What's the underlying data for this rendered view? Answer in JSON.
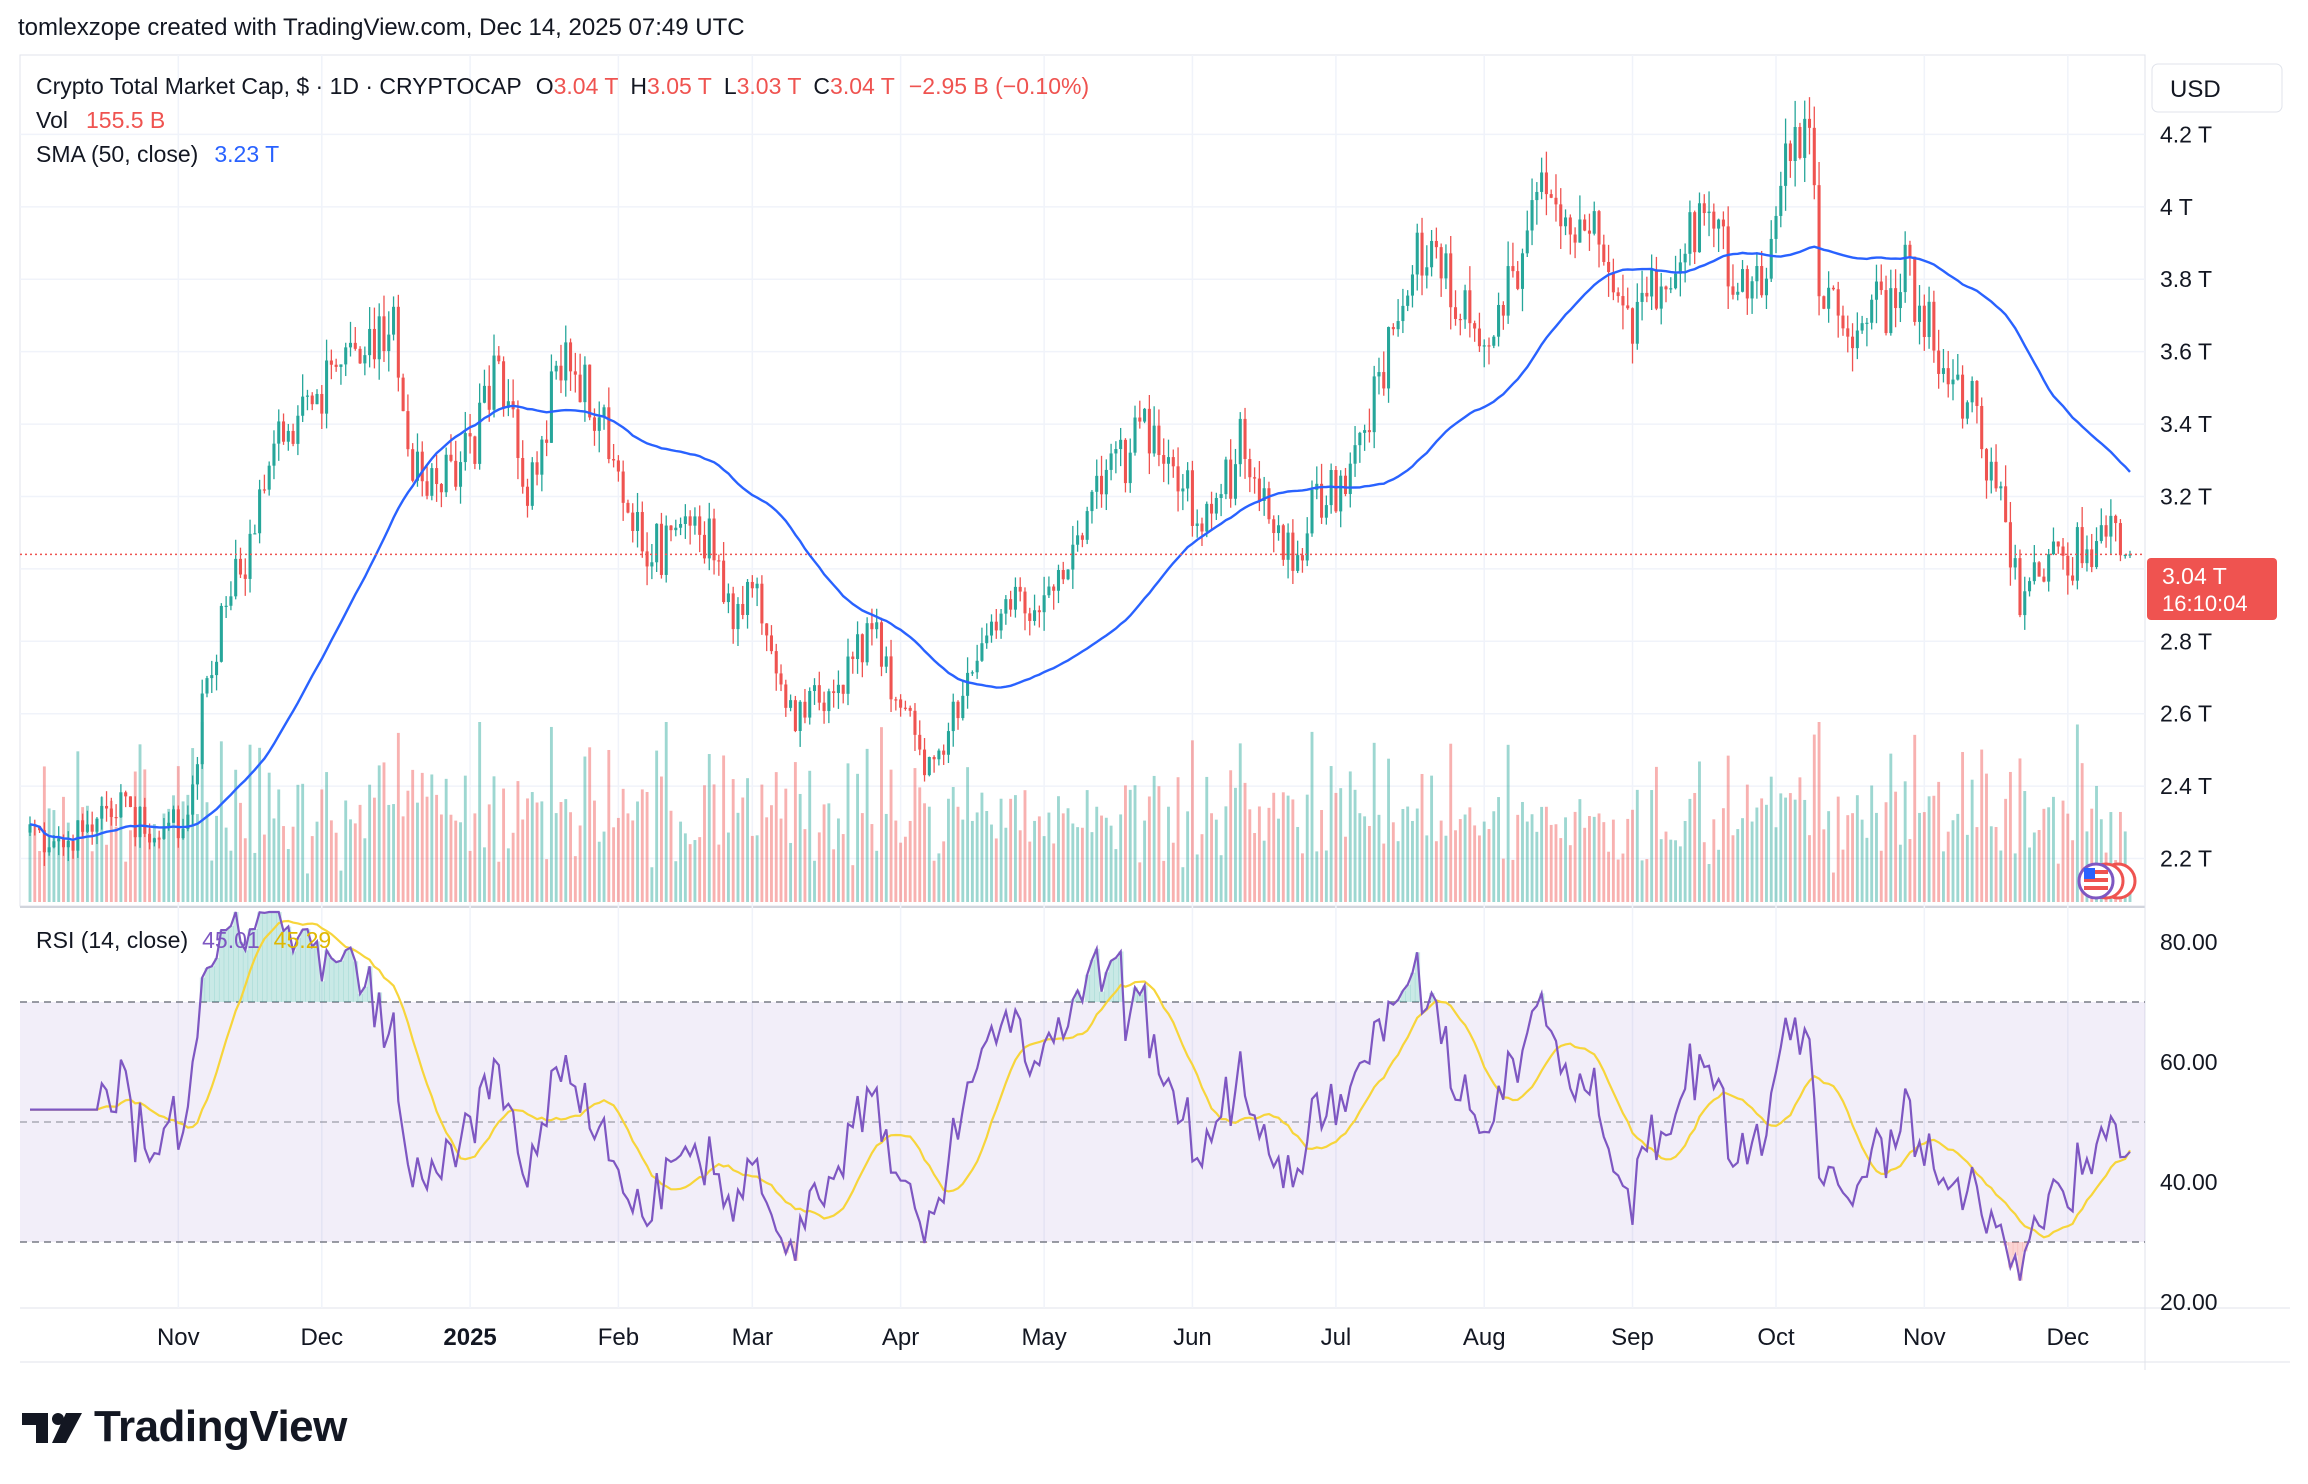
{
  "header": {
    "attribution": "tomlexzope created with TradingView.com, Dec 14, 2025 07:49 UTC"
  },
  "legend": {
    "symbol": "Crypto Total Market Cap, $ · 1D · CRYPTOCAP",
    "o_label": "O",
    "o_value": "3.04 T",
    "h_label": "H",
    "h_value": "3.05 T",
    "l_label": "L",
    "l_value": "3.03 T",
    "c_label": "C",
    "c_value": "3.04 T",
    "change": "−2.95 B (−0.10%)",
    "vol_label": "Vol",
    "vol_value": "155.5 B",
    "sma_label": "SMA (50, close)",
    "sma_value": "3.23 T",
    "rsi_label": "RSI (14, close)",
    "rsi_value": "45.01",
    "rsi_sma_value": "45.29"
  },
  "price_scale": {
    "currency": "USD",
    "current_price": "3.04 T",
    "countdown": "16:10:04"
  },
  "logo": {
    "text": "TradingView"
  },
  "colors": {
    "up": "#26a69a",
    "down": "#ef5350",
    "sma": "#2962ff",
    "rsi": "#7e57c2",
    "rsi_sma": "#f7d53b",
    "badge": "#ef5350",
    "grid": "#f0f3fa",
    "text": "#131722"
  },
  "chart_data": [
    {
      "type": "candlestick",
      "title": "Crypto Total Market Cap, $ · 1D · CRYPTOCAP",
      "unit": "T",
      "ylim": [
        2.08,
        4.4
      ],
      "y_ticks": [
        2.2,
        2.4,
        2.6,
        2.8,
        3.0,
        3.2,
        3.4,
        3.6,
        3.8,
        4.0,
        4.2
      ],
      "y_tick_labels": [
        "2.2 T",
        "2.4 T",
        "2.6 T",
        "2.8 T",
        "",
        "3.2 T",
        "3.4 T",
        "3.6 T",
        "3.8 T",
        "4 T",
        "4.2 T"
      ],
      "x_tick_labels": [
        "Nov",
        "Dec",
        "2025",
        "Feb",
        "Mar",
        "Apr",
        "May",
        "Jun",
        "Jul",
        "Aug",
        "Sep",
        "Oct",
        "Nov",
        "Dec"
      ],
      "x_tick_dates": [
        "2024-11-01",
        "2024-12-01",
        "2025-01-01",
        "2025-02-01",
        "2025-03-01",
        "2025-04-01",
        "2025-05-01",
        "2025-06-01",
        "2025-07-01",
        "2025-08-01",
        "2025-09-01",
        "2025-10-01",
        "2025-11-01",
        "2025-12-01"
      ],
      "start_date": "2024-10-01",
      "end_date": "2025-12-14",
      "close_keypoints": [
        [
          "2024-10-01",
          2.28
        ],
        [
          "2024-10-10",
          2.24
        ],
        [
          "2024-10-18",
          2.36
        ],
        [
          "2024-10-25",
          2.28
        ],
        [
          "2024-11-03",
          2.3
        ],
        [
          "2024-11-06",
          2.62
        ],
        [
          "2024-11-12",
          2.98
        ],
        [
          "2024-11-16",
          3.04
        ],
        [
          "2024-11-22",
          3.38
        ],
        [
          "2024-11-28",
          3.42
        ],
        [
          "2024-12-05",
          3.62
        ],
        [
          "2024-12-08",
          3.55
        ],
        [
          "2024-12-16",
          3.66
        ],
        [
          "2024-12-20",
          3.28
        ],
        [
          "2024-12-27",
          3.25
        ],
        [
          "2025-01-01",
          3.32
        ],
        [
          "2025-01-07",
          3.55
        ],
        [
          "2025-01-13",
          3.2
        ],
        [
          "2025-01-20",
          3.58
        ],
        [
          "2025-01-27",
          3.45
        ],
        [
          "2025-02-02",
          3.22
        ],
        [
          "2025-02-04",
          3.1
        ],
        [
          "2025-02-10",
          3.05
        ],
        [
          "2025-02-15",
          3.14
        ],
        [
          "2025-02-20",
          3.08
        ],
        [
          "2025-02-25",
          2.88
        ],
        [
          "2025-03-02",
          3.0
        ],
        [
          "2025-03-05",
          2.72
        ],
        [
          "2025-03-10",
          2.58
        ],
        [
          "2025-03-20",
          2.7
        ],
        [
          "2025-03-26",
          2.84
        ],
        [
          "2025-03-30",
          2.68
        ],
        [
          "2025-04-07",
          2.45
        ],
        [
          "2025-04-10",
          2.52
        ],
        [
          "2025-04-15",
          2.66
        ],
        [
          "2025-04-23",
          2.88
        ],
        [
          "2025-05-02",
          2.94
        ],
        [
          "2025-05-08",
          3.1
        ],
        [
          "2025-05-14",
          3.24
        ],
        [
          "2025-05-22",
          3.38
        ],
        [
          "2025-05-30",
          3.22
        ],
        [
          "2025-06-05",
          3.12
        ],
        [
          "2025-06-11",
          3.34
        ],
        [
          "2025-06-17",
          3.18
        ],
        [
          "2025-06-22",
          3.0
        ],
        [
          "2025-06-26",
          3.18
        ],
        [
          "2025-07-03",
          3.24
        ],
        [
          "2025-07-10",
          3.5
        ],
        [
          "2025-07-14",
          3.74
        ],
        [
          "2025-07-18",
          3.88
        ],
        [
          "2025-07-25",
          3.8
        ],
        [
          "2025-08-01",
          3.62
        ],
        [
          "2025-08-04",
          3.7
        ],
        [
          "2025-08-10",
          3.92
        ],
        [
          "2025-08-14",
          4.12
        ],
        [
          "2025-08-18",
          3.9
        ],
        [
          "2025-08-22",
          3.98
        ],
        [
          "2025-08-28",
          3.78
        ],
        [
          "2025-09-01",
          3.7
        ],
        [
          "2025-09-06",
          3.76
        ],
        [
          "2025-09-12",
          3.92
        ],
        [
          "2025-09-18",
          4.0
        ],
        [
          "2025-09-22",
          3.82
        ],
        [
          "2025-09-26",
          3.72
        ],
        [
          "2025-10-01",
          3.92
        ],
        [
          "2025-10-03",
          4.18
        ],
        [
          "2025-10-06",
          4.22
        ],
        [
          "2025-10-09",
          4.1
        ],
        [
          "2025-10-10",
          3.76
        ],
        [
          "2025-10-14",
          3.68
        ],
        [
          "2025-10-20",
          3.7
        ],
        [
          "2025-10-25",
          3.74
        ],
        [
          "2025-10-28",
          3.84
        ],
        [
          "2025-11-03",
          3.62
        ],
        [
          "2025-11-06",
          3.44
        ],
        [
          "2025-11-10",
          3.5
        ],
        [
          "2025-11-13",
          3.36
        ],
        [
          "2025-11-17",
          3.16
        ],
        [
          "2025-11-21",
          2.9
        ],
        [
          "2025-11-24",
          2.96
        ],
        [
          "2025-11-28",
          3.08
        ],
        [
          "2025-12-01",
          2.92
        ],
        [
          "2025-12-03",
          3.1
        ],
        [
          "2025-12-07",
          3.04
        ],
        [
          "2025-12-09",
          3.12
        ],
        [
          "2025-12-12",
          3.06
        ],
        [
          "2025-12-14",
          3.04
        ]
      ],
      "series": [
        {
          "name": "Price (close)",
          "style": "candles"
        },
        {
          "name": "SMA (50, close)",
          "style": "line",
          "color": "#2962ff",
          "last_value": 3.23
        },
        {
          "name": "Vol",
          "style": "histogram",
          "last_value": "155.5 B"
        }
      ],
      "last_ohlc": {
        "open": 3.04,
        "high": 3.05,
        "low": 3.03,
        "close": 3.04,
        "change": "−2.95 B",
        "change_pct": -0.1
      },
      "current_price_line": 3.04
    },
    {
      "type": "line",
      "title": "RSI (14, close)",
      "ylim": [
        20,
        85
      ],
      "y_ticks": [
        20,
        40,
        60,
        80
      ],
      "y_tick_labels": [
        "20.00",
        "40.00",
        "60.00",
        "80.00"
      ],
      "bands": {
        "upper": 70,
        "middle": 50,
        "lower": 30
      },
      "series": [
        {
          "name": "RSI",
          "color": "#7e57c2",
          "last_value": 45.01
        },
        {
          "name": "RSI-based MA",
          "color": "#f7d53b",
          "last_value": 45.29
        }
      ]
    }
  ]
}
